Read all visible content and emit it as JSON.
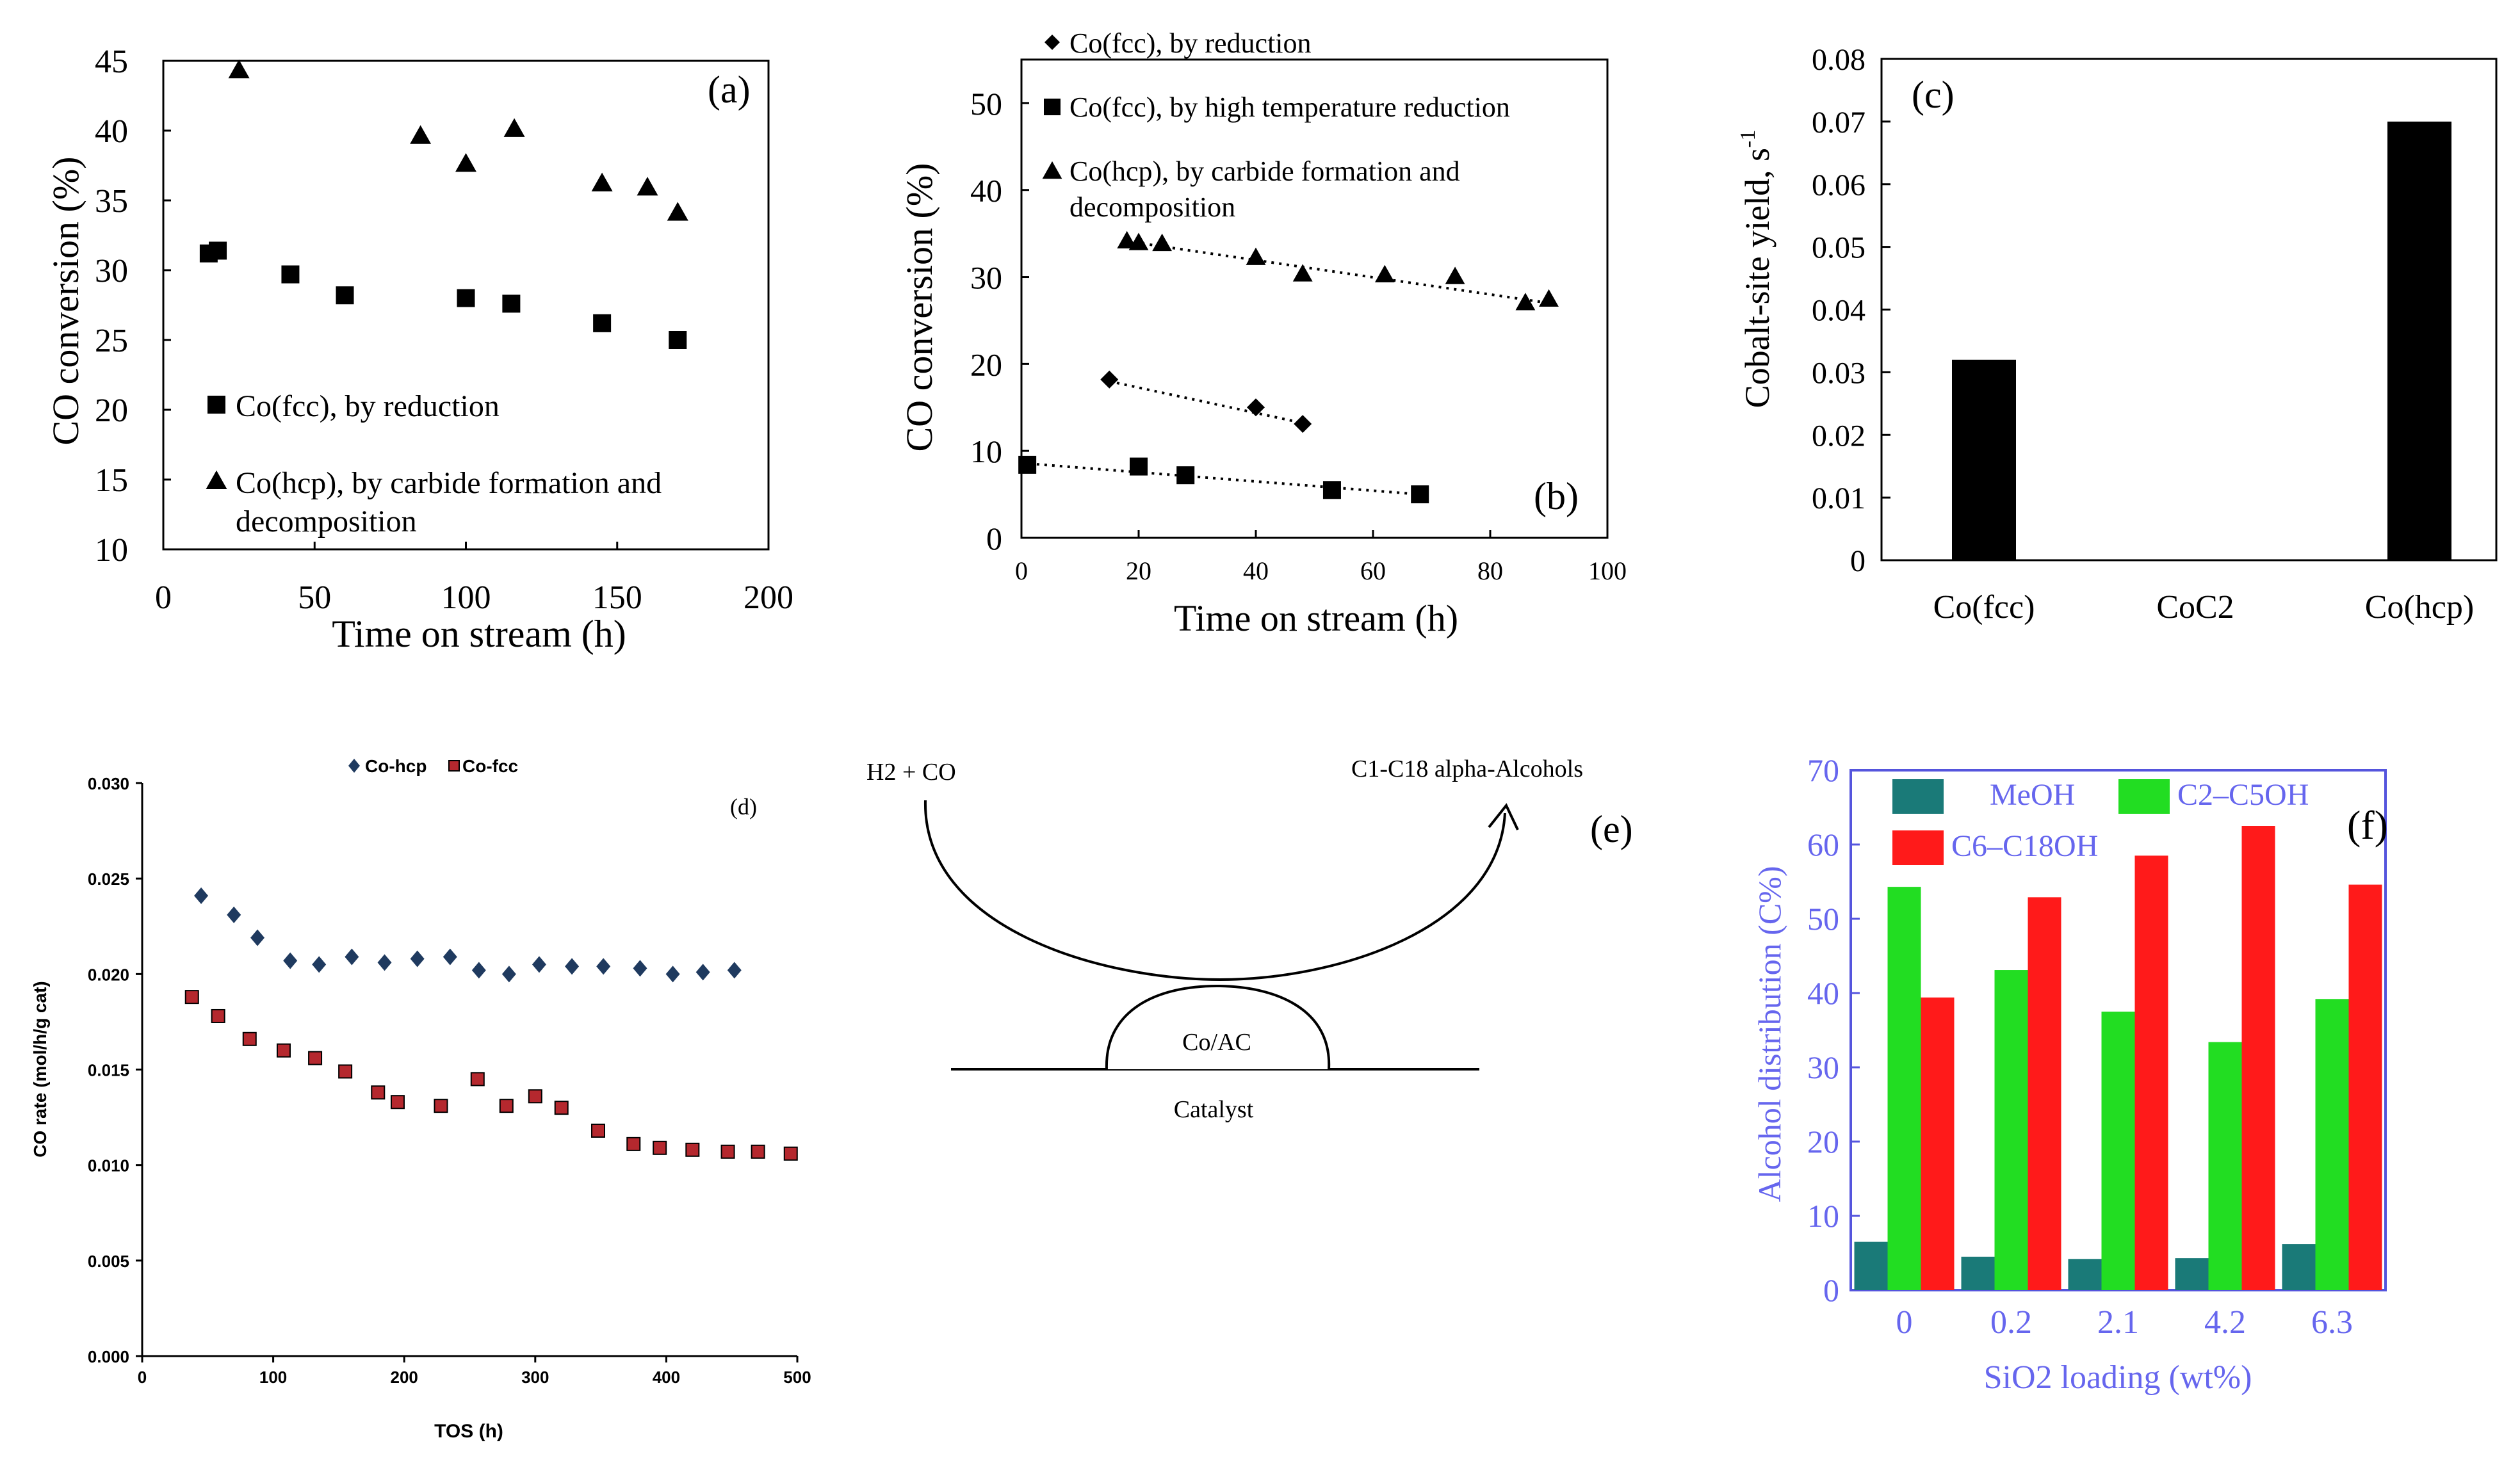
{
  "chart_data": [
    {
      "id": "a",
      "type": "scatter",
      "panel_label": "(a)",
      "xlabel": "Time on stream (h)",
      "ylabel": "CO conversion  (%)",
      "xlim": [
        0,
        200
      ],
      "ylim": [
        10,
        45
      ],
      "xticks": [
        0,
        50,
        100,
        150,
        200
      ],
      "yticks": [
        10,
        15,
        20,
        25,
        30,
        35,
        40,
        45
      ],
      "series": [
        {
          "name": "Co(fcc), by reduction",
          "marker": "square",
          "x": [
            15,
            18,
            42,
            60,
            100,
            115,
            145,
            170
          ],
          "y": [
            31.2,
            31.4,
            29.7,
            28.2,
            28.0,
            27.6,
            26.2,
            25.0
          ]
        },
        {
          "name": "Co(hcp), by carbide formation and",
          "name_line2": "decomposition",
          "marker": "triangle",
          "x": [
            25,
            85,
            100,
            116,
            145,
            160,
            170
          ],
          "y": [
            44.3,
            39.6,
            37.6,
            40.1,
            36.2,
            35.9,
            34.1
          ]
        }
      ]
    },
    {
      "id": "b",
      "type": "scatter",
      "panel_label": "(b)",
      "xlabel": "Time on stream (h)",
      "ylabel": "CO conversion  (%)",
      "xlim": [
        0,
        100
      ],
      "ylim": [
        0,
        55
      ],
      "xticks": [
        0,
        20,
        40,
        60,
        80,
        100
      ],
      "yticks": [
        0,
        10,
        20,
        30,
        40,
        50
      ],
      "series": [
        {
          "name": "Co(fcc), by reduction",
          "marker": "diamond",
          "x": [
            15,
            40,
            48
          ],
          "y": [
            18.2,
            15.0,
            13.1
          ],
          "trend": [
            [
              15,
              18.0
            ],
            [
              48,
              13.2
            ]
          ]
        },
        {
          "name": "Co(fcc), by high temperature reduction",
          "marker": "square",
          "x": [
            1,
            20,
            28,
            53,
            68
          ],
          "y": [
            8.4,
            8.2,
            7.2,
            5.5,
            5.0
          ],
          "trend": [
            [
              0,
              8.6
            ],
            [
              68,
              5.0
            ]
          ]
        },
        {
          "name": "Co(hcp), by carbide formation and",
          "name_line2": "decomposition",
          "marker": "triangle",
          "x": [
            18,
            20,
            24,
            40,
            48,
            62,
            74,
            86,
            90
          ],
          "y": [
            34.1,
            33.9,
            33.8,
            32.2,
            30.3,
            30.2,
            30.0,
            27.0,
            27.4
          ],
          "trend": [
            [
              18,
              34.1
            ],
            [
              90,
              27.0
            ]
          ]
        }
      ]
    },
    {
      "id": "c",
      "type": "bar",
      "panel_label": "(c)",
      "xlabel": "",
      "ylabel": "Cobalt-site yield, s",
      "ylabel_sup": "-1",
      "ylim": [
        0,
        0.08
      ],
      "yticks": [
        "0",
        "0.01",
        "0.02",
        "0.03",
        "0.04",
        "0.05",
        "0.06",
        "0.07",
        "0.08"
      ],
      "categories": [
        "Co(fcc)",
        "CoC2",
        "Co(hcp)"
      ],
      "values": [
        0.032,
        0,
        0.07
      ]
    },
    {
      "id": "d",
      "type": "scatter",
      "panel_label": "(d)",
      "xlabel": "TOS (h)",
      "ylabel": "CO rate (mol/h/g cat)",
      "xlim": [
        0,
        500
      ],
      "ylim": [
        0,
        0.03
      ],
      "xticks": [
        "0",
        "100",
        "200",
        "300",
        "400",
        "500"
      ],
      "yticks": [
        "0.000",
        "0.005",
        "0.010",
        "0.015",
        "0.020",
        "0.025",
        "0.030"
      ],
      "series": [
        {
          "name": "Co-hcp",
          "marker": "diamond",
          "color": "#1f3a5f",
          "x": [
            45,
            70,
            88,
            113,
            135,
            160,
            185,
            210,
            235,
            257,
            280,
            303,
            328,
            352,
            380,
            405,
            428,
            452
          ],
          "y": [
            0.0241,
            0.0231,
            0.0219,
            0.0207,
            0.0205,
            0.0209,
            0.0206,
            0.0208,
            0.0209,
            0.0202,
            0.02,
            0.0205,
            0.0204,
            0.0204,
            0.0203,
            0.02,
            0.0201,
            0.0202
          ]
        },
        {
          "name": "Co-fcc",
          "marker": "square",
          "color": "#b5282e",
          "x": [
            38,
            58,
            82,
            108,
            132,
            155,
            180,
            195,
            228,
            256,
            278,
            300,
            320,
            348,
            375,
            395,
            420,
            447,
            470,
            495
          ],
          "y": [
            0.0188,
            0.0178,
            0.0166,
            0.016,
            0.0156,
            0.0149,
            0.0138,
            0.0133,
            0.0131,
            0.0145,
            0.0131,
            0.0136,
            0.013,
            0.0118,
            0.0111,
            0.0109,
            0.0108,
            0.0107,
            0.0107,
            0.0106
          ]
        }
      ]
    },
    {
      "id": "f",
      "type": "bar",
      "panel_label": "(f)",
      "xlabel": "SiO2 loading (wt%)",
      "ylabel": "Alcohol distribution (C%)",
      "ylim": [
        0,
        70
      ],
      "yticks": [
        0,
        10,
        20,
        30,
        40,
        50,
        60,
        70
      ],
      "categories": [
        "0",
        "0.2",
        "2.1",
        "4.2",
        "6.3"
      ],
      "series": [
        {
          "name": "MeOH",
          "color": "#1a7a78",
          "values": [
            6.5,
            4.5,
            4.2,
            4.3,
            6.2
          ]
        },
        {
          "name": "C2–C5OH",
          "color": "#22dd22",
          "values": [
            54.3,
            43.1,
            37.5,
            33.4,
            39.2
          ]
        },
        {
          "name": "C6–C18OH",
          "color": "#ff1a1a",
          "values": [
            39.4,
            52.9,
            58.5,
            62.5,
            54.6
          ]
        }
      ]
    }
  ],
  "schematic_e": {
    "panel_label": "(e)",
    "reactants": "H2 + CO",
    "products": "C1-C18 alpha-Alcohols",
    "catalyst_site": "Co/AC",
    "support_label": "Catalyst"
  },
  "colors": {
    "axis": "#000000",
    "f_axis": "#5555dd",
    "f_text": "#6666ee",
    "d_hcp": "#1f3a5f",
    "d_fcc": "#b5282e"
  }
}
